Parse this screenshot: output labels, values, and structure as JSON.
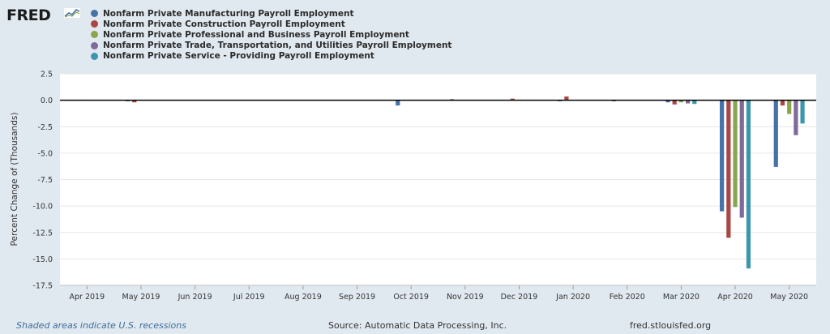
{
  "header": {
    "logo_text": "FRED"
  },
  "colors": {
    "background": "#e1e9f0",
    "plot_background": "#ffffff",
    "grid": "#e6e6e6",
    "zero_line": "#000000"
  },
  "chart_data": {
    "type": "bar",
    "ylabel": "Percent Change of (Thousands)",
    "ylim": [
      -17.5,
      2.5
    ],
    "yticks": [
      2.5,
      0.0,
      -2.5,
      -5.0,
      -7.5,
      -10.0,
      -12.5,
      -15.0,
      -17.5
    ],
    "ytick_labels": [
      "2.5",
      "0.0",
      "-2.5",
      "-5.0",
      "-7.5",
      "-10.0",
      "-12.5",
      "-15.0",
      "-17.5"
    ],
    "categories": [
      "Apr 2019",
      "May 2019",
      "Jun 2019",
      "Jul 2019",
      "Aug 2019",
      "Sep 2019",
      "Oct 2019",
      "Nov 2019",
      "Dec 2019",
      "Jan 2020",
      "Feb 2020",
      "Mar 2020",
      "Apr 2020",
      "May 2020"
    ],
    "grid": true,
    "series": [
      {
        "name": "Nonfarm Private Manufacturing Payroll Employment",
        "color": "#4572a7",
        "values": [
          0.0,
          -0.1,
          0.0,
          0.0,
          0.0,
          0.0,
          -0.5,
          0.1,
          0.0,
          -0.1,
          -0.1,
          -0.2,
          -10.5,
          -6.3
        ]
      },
      {
        "name": "Nonfarm Private Construction Payroll Employment",
        "color": "#aa4643",
        "values": [
          0.05,
          -0.2,
          0.0,
          0.0,
          0.0,
          0.0,
          0.05,
          0.0,
          0.15,
          0.35,
          0.05,
          -0.4,
          -13.0,
          -0.5
        ]
      },
      {
        "name": "Nonfarm Private Professional and Business Payroll Employment",
        "color": "#89a54e",
        "values": [
          0.05,
          0.0,
          0.05,
          0.0,
          0.0,
          0.05,
          0.0,
          0.0,
          0.05,
          0.0,
          0.0,
          -0.2,
          -10.1,
          -1.3
        ]
      },
      {
        "name": "Nonfarm Private Trade, Transportation, and Utilities Payroll Employment",
        "color": "#80699b",
        "values": [
          0.0,
          0.0,
          0.0,
          0.0,
          0.0,
          0.0,
          0.0,
          0.0,
          0.0,
          0.0,
          0.0,
          -0.3,
          -11.1,
          -3.3
        ]
      },
      {
        "name": "Nonfarm Private Service - Providing Payroll Employment",
        "color": "#3d96ae",
        "values": [
          0.05,
          0.0,
          0.0,
          0.0,
          0.0,
          0.0,
          0.0,
          0.05,
          0.0,
          0.0,
          0.0,
          -0.35,
          -15.9,
          -2.2
        ]
      }
    ]
  },
  "footer": {
    "recession_note": "Shaded areas indicate U.S. recessions",
    "source": "Source: Automatic Data Processing, Inc.",
    "site": "fred.stlouisfed.org"
  }
}
